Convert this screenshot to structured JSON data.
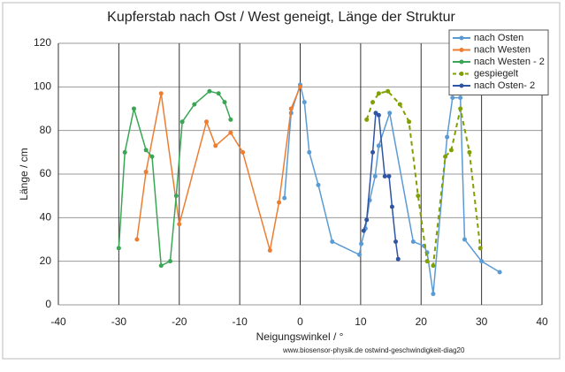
{
  "chart_data": {
    "type": "line",
    "title": "Kupferstab nach Ost / West geneigt, Länge der Struktur",
    "x_label": "Neigungswinkel / °",
    "y_label": "Länge / cm",
    "footnote": "www.biosensor-physik.de  ostwind-geschwindigkeit-diag20",
    "xlim": [
      -40,
      40
    ],
    "xticks": [
      -40,
      -30,
      -20,
      -10,
      0,
      10,
      20,
      30,
      40
    ],
    "ylim": [
      0,
      120
    ],
    "yticks": [
      0,
      20,
      40,
      60,
      80,
      100,
      120
    ],
    "grid": true,
    "legend": "top-right",
    "series": [
      {
        "name": "nach Osten",
        "color": "#5b9bd5",
        "dashed": false,
        "x": [
          -2.6,
          -1.5,
          0,
          0.7,
          1.5,
          3,
          5.3,
          9.8,
          10.1,
          10.8,
          11.5,
          12.4,
          13,
          14.8,
          18.7,
          20.5,
          21,
          22,
          24.3,
          25.2,
          26.5,
          27.2,
          30,
          33
        ],
        "values": [
          49,
          88,
          101,
          93,
          70,
          55,
          29,
          23,
          28,
          35,
          48,
          59,
          73,
          88,
          29,
          27,
          24,
          5,
          77,
          95,
          95,
          30,
          20,
          15
        ]
      },
      {
        "name": "nach Westen",
        "color": "#ed7d31",
        "dashed": false,
        "x": [
          -27,
          -25.5,
          -23,
          -20,
          -15.5,
          -14,
          -11.5,
          -9.5,
          -5,
          -3.5,
          -1.5,
          0
        ],
        "values": [
          30,
          61,
          97,
          37,
          84,
          73,
          79,
          70,
          25,
          47,
          90,
          100
        ]
      },
      {
        "name": "nach Westen - 2",
        "color": "#3aa655",
        "dashed": false,
        "x": [
          -30,
          -29,
          -27.5,
          -25.5,
          -24.5,
          -23,
          -21.5,
          -20.5,
          -19.5,
          -17.5,
          -15,
          -13.5,
          -12.5,
          -11.5
        ],
        "values": [
          26,
          70,
          90,
          71,
          68,
          18,
          20,
          50,
          84,
          92,
          98,
          97,
          93,
          85
        ]
      },
      {
        "name": "gespiegelt",
        "color": "#7fa000",
        "dashed": true,
        "x": [
          11,
          12,
          13,
          14.5,
          16.5,
          18,
          19.5,
          21,
          22,
          24,
          25,
          26.5,
          28,
          29.8
        ],
        "values": [
          85,
          93,
          97,
          98,
          92,
          84,
          50,
          20,
          18,
          68,
          71,
          90,
          70,
          26
        ]
      },
      {
        "name": "nach Osten- 2",
        "color": "#2f55a4",
        "dashed": false,
        "x": [
          10.5,
          11,
          12,
          12.5,
          13,
          14,
          14.7,
          15.2,
          15.8,
          16.2
        ],
        "values": [
          34,
          39,
          70,
          88,
          87,
          59,
          59,
          45,
          29,
          21
        ]
      }
    ]
  }
}
